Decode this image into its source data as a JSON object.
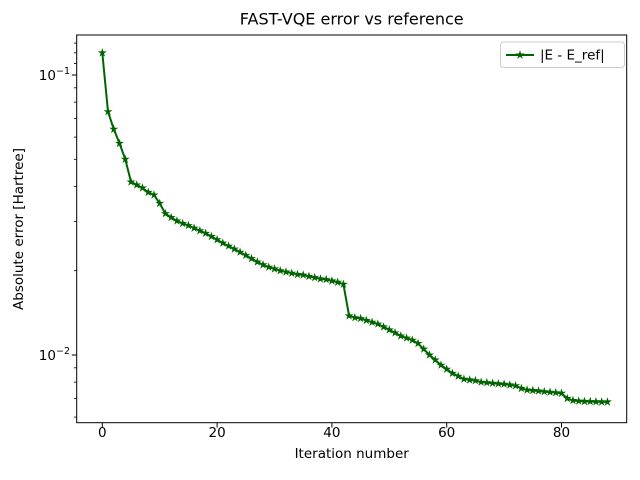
{
  "chart_data": {
    "type": "line",
    "title": "FAST-VQE error vs reference",
    "xlabel": "Iteration number",
    "ylabel": "Absolute error [Hartree]",
    "yscale": "log",
    "grid": false,
    "xlim": [
      -4.5,
      91.4
    ],
    "ylim": [
      0.0057,
      0.139
    ],
    "x_ticks": [
      {
        "value": 0,
        "label": "0"
      },
      {
        "value": 20,
        "label": "20"
      },
      {
        "value": 40,
        "label": "40"
      },
      {
        "value": 60,
        "label": "60"
      },
      {
        "value": 80,
        "label": "80"
      }
    ],
    "y_ticks": [
      {
        "value": 0.1,
        "base": "10",
        "exp": "−1"
      },
      {
        "value": 0.01,
        "base": "10",
        "exp": "−2"
      }
    ],
    "y_minor_ticks": [
      0.13,
      0.12,
      0.11,
      0.09,
      0.08,
      0.07,
      0.06,
      0.05,
      0.04,
      0.03,
      0.02,
      0.009,
      0.008,
      0.007,
      0.006
    ],
    "legend": {
      "position": "upper right",
      "entries": [
        "|E - E_ref|"
      ],
      "border_color": "#cccccc"
    },
    "series": [
      {
        "name": "|E - E_ref|",
        "color": "#006400",
        "marker": "star",
        "x": [
          0,
          1,
          2,
          3,
          4,
          5,
          6,
          7,
          8,
          9,
          10,
          11,
          12,
          13,
          14,
          15,
          16,
          17,
          18,
          19,
          20,
          21,
          22,
          23,
          24,
          25,
          26,
          27,
          28,
          29,
          30,
          31,
          32,
          33,
          34,
          35,
          36,
          37,
          38,
          39,
          40,
          41,
          42,
          43,
          44,
          45,
          46,
          47,
          48,
          49,
          50,
          51,
          52,
          53,
          54,
          55,
          56,
          57,
          58,
          59,
          60,
          61,
          62,
          63,
          64,
          65,
          66,
          67,
          68,
          69,
          70,
          71,
          72,
          73,
          74,
          75,
          76,
          77,
          78,
          79,
          80,
          81,
          82,
          83,
          84,
          85,
          86,
          87,
          88
        ],
        "y": [
          0.12,
          0.074,
          0.064,
          0.057,
          0.05,
          0.0415,
          0.0405,
          0.0395,
          0.0381,
          0.0373,
          0.0348,
          0.032,
          0.031,
          0.0301,
          0.0295,
          0.029,
          0.0284,
          0.0278,
          0.0272,
          0.0265,
          0.0258,
          0.0251,
          0.0245,
          0.0239,
          0.0233,
          0.0227,
          0.0221,
          0.0215,
          0.021,
          0.0206,
          0.0203,
          0.02,
          0.0198,
          0.0196,
          0.0194,
          0.0193,
          0.0191,
          0.0189,
          0.0187,
          0.0186,
          0.0184,
          0.0182,
          0.0179,
          0.0138,
          0.0136,
          0.0135,
          0.0133,
          0.0131,
          0.0129,
          0.0126,
          0.0123,
          0.012,
          0.0117,
          0.0115,
          0.0113,
          0.011,
          0.0105,
          0.01,
          0.0096,
          0.0092,
          0.0089,
          0.0086,
          0.0084,
          0.0082,
          0.00815,
          0.0081,
          0.008,
          0.00797,
          0.00793,
          0.0079,
          0.00787,
          0.00782,
          0.00777,
          0.0076,
          0.0075,
          0.00747,
          0.00744,
          0.0074,
          0.00737,
          0.00734,
          0.0073,
          0.007,
          0.00688,
          0.00685,
          0.00683,
          0.00682,
          0.00681,
          0.0068,
          0.0068
        ]
      }
    ]
  }
}
